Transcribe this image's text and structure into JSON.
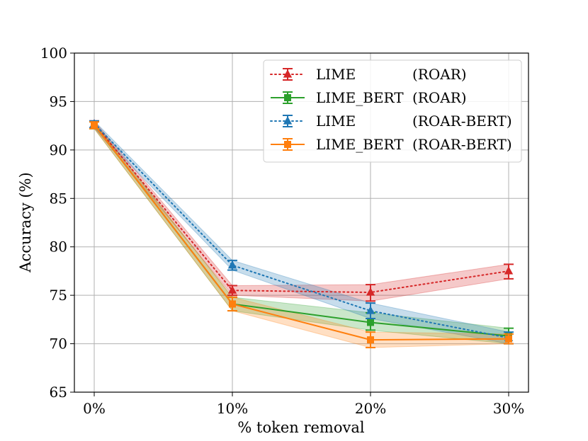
{
  "chart_data": {
    "type": "line",
    "title": "",
    "xlabel": "% token removal",
    "ylabel": "Accuracy (%)",
    "categories": [
      "0%",
      "10%",
      "20%",
      "30%"
    ],
    "ylim": [
      65,
      100
    ],
    "yticks": [
      65,
      70,
      75,
      80,
      85,
      90,
      95,
      100
    ],
    "grid": true,
    "legend_position": "top-right",
    "series": [
      {
        "name": "LIME",
        "method": "(ROAR)",
        "color": "#d62728",
        "linestyle": "dotted",
        "marker": "triangle",
        "values": [
          92.7,
          75.5,
          75.3,
          77.5
        ],
        "lower": [
          92.3,
          75.0,
          74.4,
          76.7
        ],
        "upper": [
          93.0,
          76.0,
          76.1,
          78.2
        ]
      },
      {
        "name": "LIME_BERT",
        "method": "(ROAR)",
        "color": "#2ca02c",
        "linestyle": "solid",
        "marker": "square",
        "values": [
          92.6,
          74.1,
          72.2,
          70.8
        ],
        "lower": [
          92.2,
          73.4,
          71.4,
          70.0
        ],
        "upper": [
          92.9,
          74.8,
          73.2,
          71.6
        ]
      },
      {
        "name": "LIME",
        "method": "(ROAR-BERT)",
        "color": "#1f77b4",
        "linestyle": "dotted",
        "marker": "triangle",
        "values": [
          92.7,
          78.1,
          73.4,
          70.6
        ],
        "lower": [
          92.3,
          77.6,
          72.6,
          70.0
        ],
        "upper": [
          93.0,
          78.6,
          74.2,
          71.2
        ]
      },
      {
        "name": "LIME_BERT",
        "method": "(ROAR-BERT)",
        "color": "#ff7f0e",
        "linestyle": "solid",
        "marker": "square",
        "values": [
          92.6,
          74.1,
          70.4,
          70.5
        ],
        "lower": [
          92.2,
          73.4,
          69.6,
          70.0
        ],
        "upper": [
          92.9,
          74.8,
          71.2,
          71.0
        ]
      }
    ]
  }
}
